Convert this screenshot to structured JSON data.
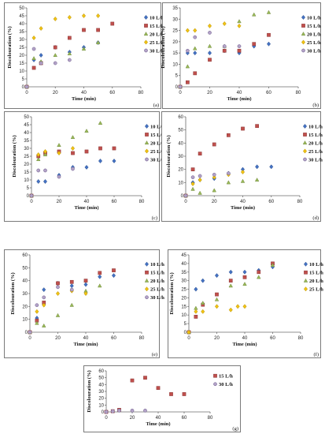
{
  "styles": {
    "10 L/h": {
      "shape": "diamond",
      "fill": "#4472c4",
      "stroke": "#2f528f"
    },
    "15 L/h": {
      "shape": "square",
      "fill": "#c0504d",
      "stroke": "#8c3836"
    },
    "20 L/h": {
      "shape": "triangle",
      "fill": "#9bbb59",
      "stroke": "#71893f"
    },
    "25 L/h": {
      "shape": "diamond",
      "fill": "#f2c314",
      "stroke": "#b58f00"
    },
    "30 L/h": {
      "shape": "circle",
      "fill": "#b3a2c7",
      "stroke": "#6a5a8a"
    }
  },
  "chart_data": [
    {
      "type": "scatter",
      "letter": "(a)",
      "xlabel": "Time (min)",
      "ylabel": "Discolouration (%)",
      "xlim": [
        0,
        80
      ],
      "ylim": [
        0,
        50
      ],
      "xticks": [
        0,
        20,
        40,
        60,
        80
      ],
      "yticks": [
        0,
        5,
        10,
        15,
        20,
        25,
        30,
        35,
        40,
        45,
        50
      ],
      "series": [
        {
          "name": "10 L/h",
          "x": [
            0,
            5,
            10,
            20,
            30,
            40,
            50
          ],
          "y": [
            0,
            17,
            20,
            25,
            22,
            25,
            28
          ]
        },
        {
          "name": "15 L/h",
          "x": [
            0,
            5,
            10,
            20,
            30,
            40,
            50,
            60
          ],
          "y": [
            0,
            12,
            15,
            25,
            31,
            36,
            36,
            40
          ]
        },
        {
          "name": "20 L/h",
          "x": [
            0,
            5,
            10,
            20,
            30,
            40,
            50
          ],
          "y": [
            0,
            18,
            16,
            20,
            21,
            24,
            28
          ]
        },
        {
          "name": "25 L/h",
          "x": [
            0,
            5,
            10,
            20,
            30,
            40,
            50
          ],
          "y": [
            0,
            31,
            37,
            43,
            44,
            45,
            45
          ]
        },
        {
          "name": "30 L/h",
          "x": [
            0,
            5,
            10,
            20,
            30
          ],
          "y": [
            0,
            24,
            15,
            15,
            17
          ]
        }
      ]
    },
    {
      "type": "scatter",
      "letter": "(b)",
      "xlabel": "Time (min)",
      "ylabel": "Discolouration (%)",
      "xlim": [
        0,
        80
      ],
      "ylim": [
        0,
        35
      ],
      "xticks": [
        0,
        20,
        40,
        60,
        80
      ],
      "yticks": [
        0,
        5,
        10,
        15,
        20,
        25,
        30,
        35
      ],
      "series": [
        {
          "name": "10 L/h",
          "x": [
            0,
            5,
            10,
            20,
            30,
            40,
            50,
            60
          ],
          "y": [
            0,
            15,
            15,
            15,
            16,
            15,
            18,
            19
          ]
        },
        {
          "name": "15 L/h",
          "x": [
            0,
            5,
            10,
            20,
            30,
            40,
            50,
            60
          ],
          "y": [
            0,
            2,
            6,
            12,
            16,
            16,
            19,
            23
          ]
        },
        {
          "name": "20 L/h",
          "x": [
            0,
            5,
            10,
            20,
            30,
            40,
            50,
            60
          ],
          "y": [
            0,
            9,
            17,
            18,
            18,
            29,
            32,
            33
          ]
        },
        {
          "name": "25 L/h",
          "x": [
            0,
            5,
            10,
            20,
            30,
            40
          ],
          "y": [
            0,
            25,
            25,
            27,
            28,
            27
          ]
        },
        {
          "name": "30 L/h",
          "x": [
            0,
            5,
            10,
            20,
            30,
            40
          ],
          "y": [
            0,
            16,
            22,
            24,
            18,
            18
          ]
        }
      ]
    },
    {
      "type": "scatter",
      "letter": "(c)",
      "xlabel": "Time (min)",
      "ylabel": "Discolouration (%)",
      "xlim": [
        0,
        80
      ],
      "ylim": [
        0,
        50
      ],
      "xticks": [
        0,
        20,
        40,
        60,
        80
      ],
      "yticks": [
        0,
        5,
        10,
        15,
        20,
        25,
        30,
        35,
        40,
        45,
        50
      ],
      "series": [
        {
          "name": "10 L/h",
          "x": [
            0,
            5,
            10,
            20,
            30,
            40,
            50,
            60
          ],
          "y": [
            0,
            9,
            9,
            13,
            18,
            18,
            22,
            22
          ]
        },
        {
          "name": "15 L/h",
          "x": [
            0,
            5,
            10,
            20,
            30,
            40,
            50,
            60
          ],
          "y": [
            0,
            25,
            27,
            28,
            27,
            28,
            30,
            30
          ]
        },
        {
          "name": "20 L/h",
          "x": [
            0,
            5,
            10,
            20,
            30,
            40,
            50
          ],
          "y": [
            0,
            23,
            26,
            32,
            37,
            41,
            46
          ]
        },
        {
          "name": "25 L/h",
          "x": [
            0,
            5,
            10,
            20,
            30
          ],
          "y": [
            0,
            26,
            28,
            27,
            30
          ]
        },
        {
          "name": "30 L/h",
          "x": [
            0,
            5,
            10,
            20,
            30
          ],
          "y": [
            0,
            16,
            16,
            12,
            17
          ]
        }
      ]
    },
    {
      "type": "scatter",
      "letter": "(d)",
      "xlabel": "Time (min)",
      "ylabel": "Discolouration (%)",
      "xlim": [
        0,
        80
      ],
      "ylim": [
        0,
        60
      ],
      "xticks": [
        0,
        20,
        40,
        60,
        80
      ],
      "yticks": [
        0,
        10,
        20,
        30,
        40,
        50,
        60
      ],
      "series": [
        {
          "name": "10 L/h",
          "x": [
            0,
            5,
            10,
            20,
            30,
            40,
            50,
            60
          ],
          "y": [
            0,
            10,
            12,
            13,
            17,
            20,
            22,
            22
          ]
        },
        {
          "name": "15 L/h",
          "x": [
            0,
            5,
            10,
            20,
            30,
            40,
            50
          ],
          "y": [
            0,
            20,
            32,
            39,
            46,
            51,
            53
          ]
        },
        {
          "name": "20 L/h",
          "x": [
            0,
            5,
            10,
            20,
            30,
            40,
            50
          ],
          "y": [
            0,
            5,
            2,
            4,
            10,
            11,
            12
          ]
        },
        {
          "name": "25 L/h",
          "x": [
            0,
            5,
            10,
            20,
            30,
            40
          ],
          "y": [
            0,
            9,
            12,
            14,
            16,
            18
          ]
        },
        {
          "name": "30 L/h",
          "x": [
            0,
            5,
            10,
            20,
            30
          ],
          "y": [
            0,
            14,
            15,
            16,
            17
          ]
        }
      ]
    },
    {
      "type": "scatter",
      "letter": "(e)",
      "xlabel": "Time (min)",
      "ylabel": "Discolouration (%)",
      "xlim": [
        0,
        80
      ],
      "ylim": [
        0,
        60
      ],
      "xticks": [
        0,
        20,
        40,
        60,
        80
      ],
      "yticks": [
        0,
        10,
        20,
        30,
        40,
        50,
        60
      ],
      "series": [
        {
          "name": "10 L/h",
          "x": [
            0,
            5,
            10,
            20,
            30,
            40,
            50,
            60
          ],
          "y": [
            0,
            11,
            33,
            38,
            36,
            37,
            43,
            44
          ]
        },
        {
          "name": "15 L/h",
          "x": [
            0,
            5,
            10,
            20,
            30,
            40,
            50,
            60
          ],
          "y": [
            0,
            9,
            23,
            38,
            39,
            40,
            46,
            48
          ]
        },
        {
          "name": "20 L/h",
          "x": [
            0,
            5,
            10,
            20,
            30,
            40,
            50
          ],
          "y": [
            0,
            7,
            5,
            13,
            21,
            32,
            36
          ]
        },
        {
          "name": "25 L/h",
          "x": [
            0,
            5,
            10,
            20,
            30,
            40
          ],
          "y": [
            0,
            16,
            21,
            30,
            32,
            30
          ]
        },
        {
          "name": "30 L/h",
          "x": [
            0,
            5,
            10,
            20,
            30
          ],
          "y": [
            0,
            21,
            27,
            35,
            33
          ]
        }
      ]
    },
    {
      "type": "scatter",
      "letter": "(f)",
      "xlabel": "Time (min)",
      "ylabel": "Discolouration (%)",
      "xlim": [
        0,
        80
      ],
      "ylim": [
        0,
        45
      ],
      "xticks": [
        0,
        20,
        40,
        60,
        80
      ],
      "yticks": [
        0,
        5,
        10,
        15,
        20,
        25,
        30,
        35,
        40,
        45
      ],
      "series": [
        {
          "name": "10 L/h",
          "x": [
            0,
            5,
            10,
            20,
            30,
            40,
            50,
            60
          ],
          "y": [
            0,
            25,
            30,
            33,
            35,
            35,
            36,
            38
          ]
        },
        {
          "name": "15 L/h",
          "x": [
            0,
            5,
            10,
            20,
            30,
            40,
            50,
            60
          ],
          "y": [
            0,
            9,
            16,
            22,
            30,
            32,
            35,
            40
          ]
        },
        {
          "name": "20 L/h",
          "x": [
            0,
            5,
            10,
            20,
            30,
            40,
            50,
            60
          ],
          "y": [
            0,
            14,
            17,
            19,
            27,
            28,
            32,
            39
          ]
        },
        {
          "name": "25 L/h",
          "x": [
            0,
            5,
            10,
            20,
            30,
            35,
            40
          ],
          "y": [
            0,
            12,
            12,
            15,
            13,
            15,
            15
          ]
        }
      ]
    },
    {
      "type": "scatter",
      "letter": "(g)",
      "xlabel": "Time (min)",
      "ylabel": "Discolouration (%)",
      "xlim": [
        0,
        80
      ],
      "ylim": [
        0,
        60
      ],
      "xticks": [
        0,
        20,
        40,
        60,
        80
      ],
      "yticks": [
        0,
        10,
        20,
        30,
        40,
        50,
        60
      ],
      "series": [
        {
          "name": "15 L/h",
          "x": [
            0,
            5,
            10,
            20,
            30,
            40,
            50,
            60
          ],
          "y": [
            0,
            1,
            3,
            46,
            50,
            35,
            26,
            26
          ]
        },
        {
          "name": "30 L/h",
          "x": [
            0,
            5,
            10,
            20,
            30
          ],
          "y": [
            0,
            1,
            2,
            2,
            2
          ]
        }
      ]
    }
  ]
}
